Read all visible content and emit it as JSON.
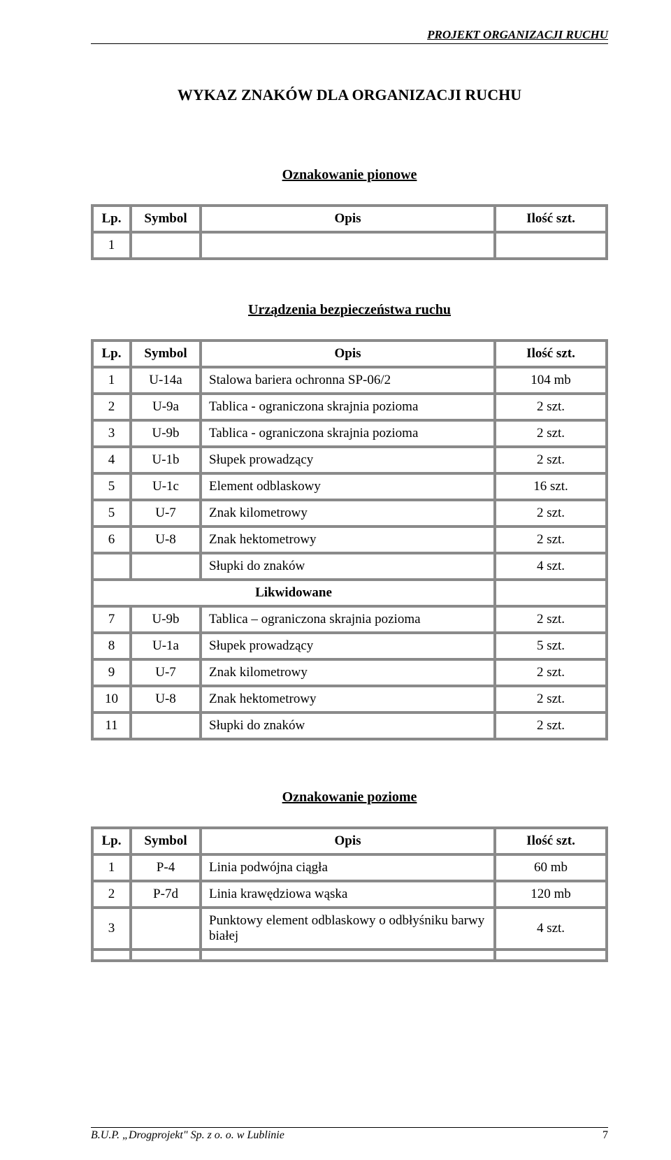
{
  "header": {
    "project_label": "PROJEKT ORGANIZACJI RUCHU"
  },
  "title": "WYKAZ  ZNAKÓW DLA ORGANIZACJI RUCHU",
  "sections": {
    "vertical": {
      "title": "Oznakowanie pionowe",
      "columns": {
        "lp": "Lp.",
        "symbol": "Symbol",
        "opis": "Opis",
        "qty": "Ilość szt."
      },
      "rows": [
        {
          "lp": "1",
          "symbol": "",
          "opis": "",
          "qty": ""
        }
      ]
    },
    "safety": {
      "title": "Urządzenia bezpieczeństwa ruchu",
      "columns": {
        "lp": "Lp.",
        "symbol": "Symbol",
        "opis": "Opis",
        "qty": "Ilość szt."
      },
      "rows_top": [
        {
          "lp": "1",
          "symbol": "U-14a",
          "opis": "Stalowa bariera ochronna SP-06/2",
          "qty": "104 mb"
        },
        {
          "lp": "2",
          "symbol": "U-9a",
          "opis": "Tablica - ograniczona skrajnia pozioma",
          "qty": "2 szt."
        },
        {
          "lp": "3",
          "symbol": "U-9b",
          "opis": "Tablica - ograniczona skrajnia pozioma",
          "qty": "2 szt."
        },
        {
          "lp": "4",
          "symbol": "U-1b",
          "opis": "Słupek prowadzący",
          "qty": "2 szt."
        },
        {
          "lp": "5",
          "symbol": "U-1c",
          "opis": "Element odblaskowy",
          "qty": "16 szt."
        },
        {
          "lp": "5",
          "symbol": "U-7",
          "opis": "Znak kilometrowy",
          "qty": "2 szt."
        },
        {
          "lp": "6",
          "symbol": "U-8",
          "opis": "Znak hektometrowy",
          "qty": "2 szt."
        },
        {
          "lp": "",
          "symbol": "",
          "opis": "Słupki do znaków",
          "qty": "4 szt."
        }
      ],
      "liquidated_label": "Likwidowane",
      "rows_bottom": [
        {
          "lp": "7",
          "symbol": "U-9b",
          "opis": "Tablica – ograniczona skrajnia pozioma",
          "qty": "2 szt."
        },
        {
          "lp": "8",
          "symbol": "U-1a",
          "opis": "Słupek prowadzący",
          "qty": "5 szt."
        },
        {
          "lp": "9",
          "symbol": "U-7",
          "opis": "Znak kilometrowy",
          "qty": "2 szt."
        },
        {
          "lp": "10",
          "symbol": "U-8",
          "opis": "Znak hektometrowy",
          "qty": "2 szt."
        },
        {
          "lp": "11",
          "symbol": "",
          "opis": "Słupki do znaków",
          "qty": "2 szt."
        }
      ]
    },
    "horizontal": {
      "title": "Oznakowanie poziome",
      "columns": {
        "lp": "Lp.",
        "symbol": "Symbol",
        "opis": "Opis",
        "qty": "Ilość szt."
      },
      "rows": [
        {
          "lp": "1",
          "symbol": "P-4",
          "opis": "Linia podwójna ciągła",
          "qty": "60 mb"
        },
        {
          "lp": "2",
          "symbol": "P-7d",
          "opis": "Linia krawędziowa wąska",
          "qty": "120 mb"
        },
        {
          "lp": "3",
          "symbol": "",
          "opis": "Punktowy element odblaskowy o odbłyśniku barwy białej",
          "qty": "4 szt."
        },
        {
          "lp": "",
          "symbol": "",
          "opis": "",
          "qty": ""
        }
      ]
    }
  },
  "footer": {
    "left": "B.U.P. „Drogprojekt\" Sp. z o. o. w Lublinie",
    "page_no": "7"
  }
}
